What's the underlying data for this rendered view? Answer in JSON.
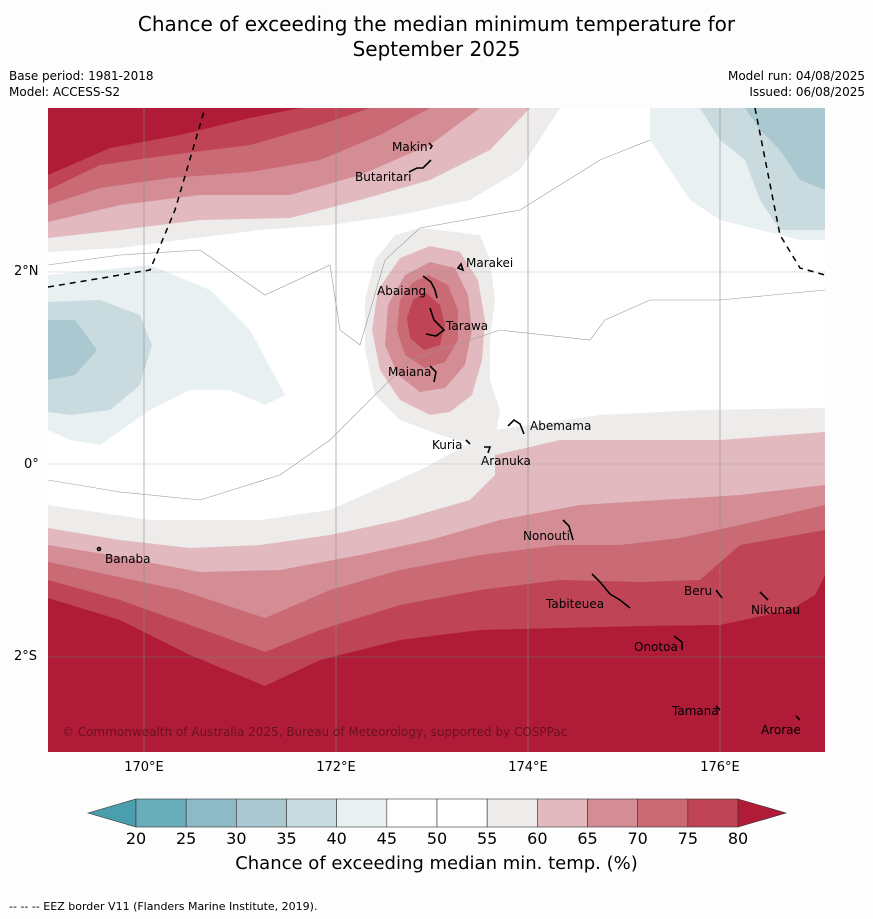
{
  "title_line1": "Chance of exceeding the median minimum temperature for",
  "title_line2": "September 2025",
  "base_period": "Base period: 1981-2018",
  "model": "Model: ACCESS-S2",
  "model_run": "Model run: 04/08/2025",
  "issued": "Issued: 06/08/2025",
  "lat_labels": [
    "2°N",
    "0°",
    "2°S"
  ],
  "lon_labels": [
    "170°E",
    "172°E",
    "174°E",
    "176°E"
  ],
  "places": [
    "Makin",
    "Butaritari",
    "Marakei",
    "Abaiang",
    "Tarawa",
    "Maiana",
    "Abemama",
    "Kuria",
    "Aranuka",
    "Banaba",
    "Nonouti",
    "Tabiteuea",
    "Beru",
    "Nikunau",
    "Onotoa",
    "Tamana",
    "Arorae"
  ],
  "copyright": "© Commonwealth of Australia 2025, Bureau of Meteorology, supported by COSPPac",
  "colorbar": {
    "ticks": [
      "20",
      "25",
      "30",
      "35",
      "40",
      "45",
      "50",
      "55",
      "60",
      "65",
      "70",
      "75",
      "80"
    ],
    "colors": [
      "#6aaebb",
      "#8dbac5",
      "#a9c8cf",
      "#c9dbde",
      "#e8f0f2",
      "#ffffff",
      "#ffffff",
      "#eeeceb",
      "#e2b9be",
      "#d48d95",
      "#c96a75",
      "#bf4455"
    ],
    "low_color": "#4a9eae",
    "high_color": "#b01c38",
    "label": "Chance of exceeding median min. temp. (%)"
  },
  "footnote": "--  --  -- EEZ border V11 (Flanders Marine Institute, 2019)."
}
